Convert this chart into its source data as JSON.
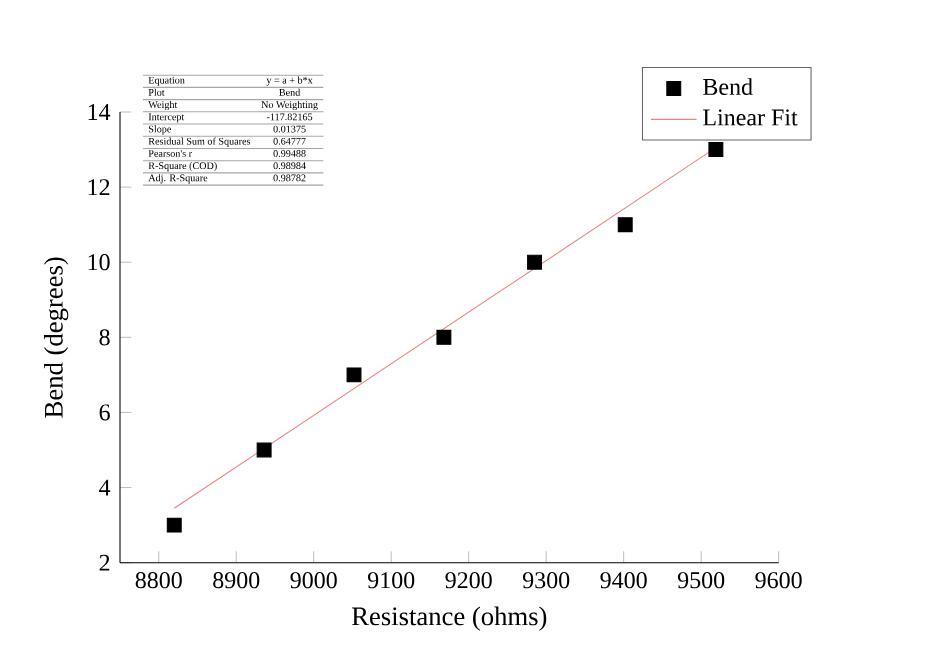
{
  "chart_data": {
    "type": "scatter",
    "xlabel": "Resistance (ohms)",
    "ylabel": "Bend (degrees)",
    "xlim": [
      8750,
      9600
    ],
    "xticks": [
      8800,
      8900,
      9000,
      9100,
      9200,
      9300,
      9400,
      9500,
      9600
    ],
    "ylim": [
      2,
      14
    ],
    "yticks": [
      2,
      4,
      6,
      8,
      10,
      12,
      14
    ],
    "x": [
      8820,
      8936,
      9052,
      9168,
      9285,
      9402,
      9519
    ],
    "series": [
      {
        "name": "Bend",
        "color": "#000000",
        "marker": "square",
        "values": [
          3,
          5,
          7,
          8,
          10,
          11,
          13
        ]
      },
      {
        "name": "Linear Fit",
        "type": "line",
        "color": "#f08080",
        "x": [
          8820,
          9519
        ],
        "values": [
          3.45,
          13.05
        ]
      }
    ],
    "legend": "top right",
    "grid": false,
    "annotations": [
      "Equation",
      "y = a + b*x",
      "Plot",
      "Bend",
      "Weight",
      "No Weighting",
      "Intercept",
      "-117.82165",
      "Slope",
      "0.01375",
      "Residual Sum of Squares",
      "0.64777",
      "Pearson's r",
      "0.99488",
      "R-Square (COD)",
      "0.98984",
      "Adj. R-Square",
      "0.98782"
    ]
  }
}
